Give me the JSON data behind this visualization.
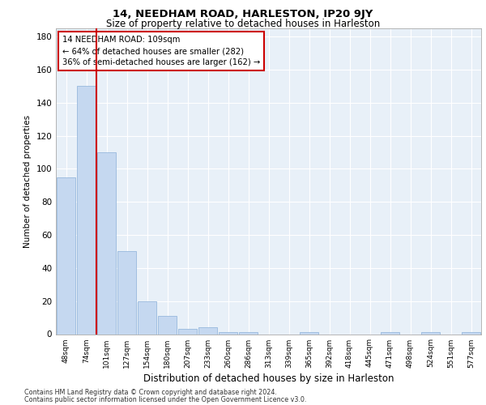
{
  "title": "14, NEEDHAM ROAD, HARLESTON, IP20 9JY",
  "subtitle": "Size of property relative to detached houses in Harleston",
  "xlabel": "Distribution of detached houses by size in Harleston",
  "ylabel": "Number of detached properties",
  "categories": [
    "48sqm",
    "74sqm",
    "101sqm",
    "127sqm",
    "154sqm",
    "180sqm",
    "207sqm",
    "233sqm",
    "260sqm",
    "286sqm",
    "313sqm",
    "339sqm",
    "365sqm",
    "392sqm",
    "418sqm",
    "445sqm",
    "471sqm",
    "498sqm",
    "524sqm",
    "551sqm",
    "577sqm"
  ],
  "values": [
    95,
    150,
    110,
    50,
    20,
    11,
    3,
    4,
    1,
    1,
    0,
    0,
    1,
    0,
    0,
    0,
    1,
    0,
    1,
    0,
    1
  ],
  "bar_color": "#c5d8f0",
  "bar_edge_color": "#8ab0d8",
  "red_line_index": 2,
  "annotation_text": "14 NEEDHAM ROAD: 109sqm\n← 64% of detached houses are smaller (282)\n36% of semi-detached houses are larger (162) →",
  "annotation_box_color": "#ffffff",
  "annotation_box_edge_color": "#cc0000",
  "ylim": [
    0,
    185
  ],
  "yticks": [
    0,
    20,
    40,
    60,
    80,
    100,
    120,
    140,
    160,
    180
  ],
  "background_color": "#e8f0f8",
  "grid_color": "#ffffff",
  "footer_line1": "Contains HM Land Registry data © Crown copyright and database right 2024.",
  "footer_line2": "Contains public sector information licensed under the Open Government Licence v3.0."
}
